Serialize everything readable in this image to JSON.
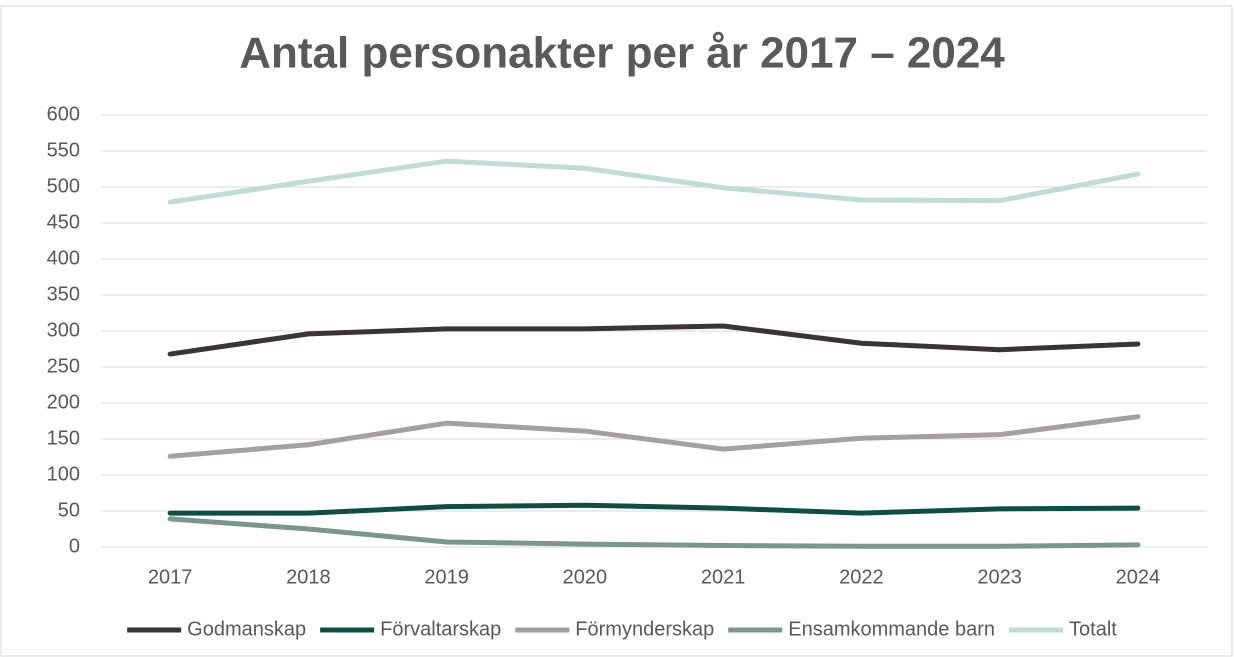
{
  "chart_data": {
    "type": "line",
    "title": "Antal personakter per år 2017 – 2024",
    "categories": [
      "2017",
      "2018",
      "2019",
      "2020",
      "2021",
      "2022",
      "2023",
      "2024"
    ],
    "series": [
      {
        "name": "Godmanskap",
        "color": "#3a3432",
        "values": [
          268,
          296,
          303,
          303,
          307,
          283,
          274,
          282
        ]
      },
      {
        "name": "Förvaltarskap",
        "color": "#0d4f45",
        "values": [
          47,
          47,
          56,
          58,
          54,
          47,
          53,
          54
        ]
      },
      {
        "name": "Förmynderskap",
        "color": "#a59fa0",
        "values": [
          126,
          142,
          172,
          161,
          136,
          151,
          156,
          181
        ]
      },
      {
        "name": "Ensamkommande barn",
        "color": "#7b968c",
        "values": [
          39,
          25,
          7,
          4,
          2,
          1,
          1,
          3
        ]
      },
      {
        "name": "Totalt",
        "color": "#bfdcd6",
        "values": [
          479,
          508,
          536,
          526,
          499,
          482,
          481,
          518
        ]
      }
    ],
    "ylim": [
      0,
      600
    ],
    "yticks": [
      0,
      50,
      100,
      150,
      200,
      250,
      300,
      350,
      400,
      450,
      500,
      550,
      600
    ],
    "grid": true,
    "legend": "bottom"
  }
}
